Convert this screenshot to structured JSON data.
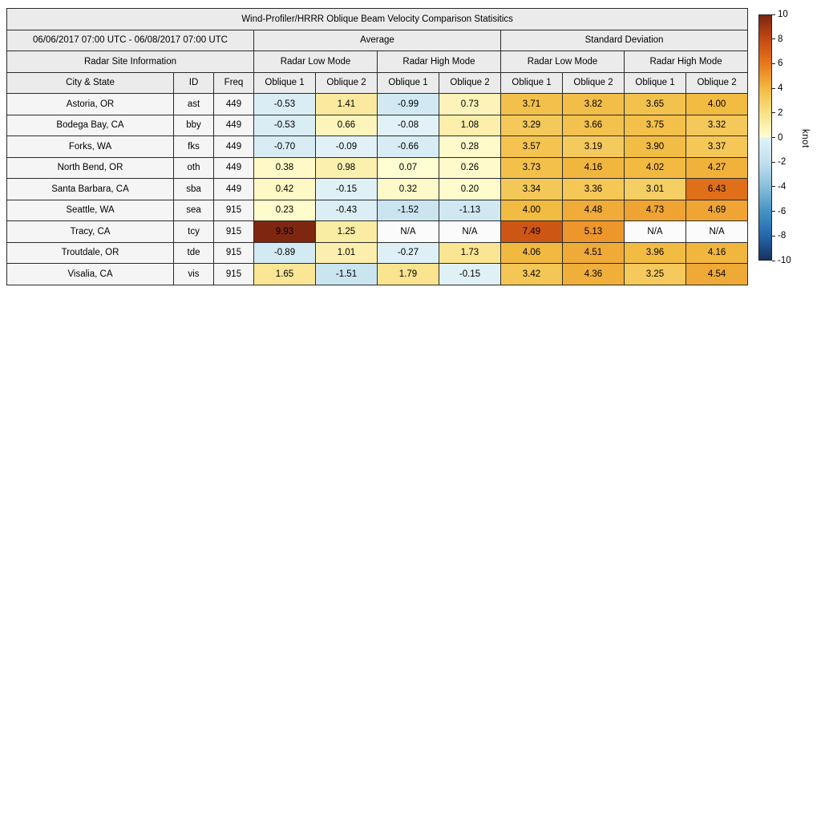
{
  "chart_data": {
    "type": "heatmap",
    "title": "Wind-Profiler/HRRR Oblique Beam Velocity Comparison Statisitics",
    "date_range": "06/06/2017 07:00 UTC - 06/08/2017 07:00 UTC",
    "groups": [
      "Average",
      "Standard Deviation"
    ],
    "site_info_header": "Radar Site Information",
    "mode_headers": [
      "Radar Low Mode",
      "Radar High Mode",
      "Radar Low Mode",
      "Radar High Mode"
    ],
    "row_headers": [
      "City & State",
      "ID",
      "Freq"
    ],
    "value_columns": [
      "Oblique 1",
      "Oblique 2",
      "Oblique 1",
      "Oblique 2",
      "Oblique 1",
      "Oblique 2",
      "Oblique 1",
      "Oblique 2"
    ],
    "na_text": "N/A",
    "rows": [
      {
        "city": "Astoria, OR",
        "id": "ast",
        "freq": "449",
        "values": [
          -0.53,
          1.41,
          -0.99,
          0.73,
          3.71,
          3.82,
          3.65,
          4.0
        ]
      },
      {
        "city": "Bodega Bay, CA",
        "id": "bby",
        "freq": "449",
        "values": [
          -0.53,
          0.66,
          -0.08,
          1.08,
          3.29,
          3.66,
          3.75,
          3.32
        ]
      },
      {
        "city": "Forks, WA",
        "id": "fks",
        "freq": "449",
        "values": [
          -0.7,
          -0.09,
          -0.66,
          0.28,
          3.57,
          3.19,
          3.9,
          3.37
        ]
      },
      {
        "city": "North Bend, OR",
        "id": "oth",
        "freq": "449",
        "values": [
          0.38,
          0.98,
          0.07,
          0.26,
          3.73,
          4.16,
          4.02,
          4.27
        ]
      },
      {
        "city": "Santa Barbara, CA",
        "id": "sba",
        "freq": "449",
        "values": [
          0.42,
          -0.15,
          0.32,
          0.2,
          3.34,
          3.36,
          3.01,
          6.43
        ]
      },
      {
        "city": "Seattle, WA",
        "id": "sea",
        "freq": "915",
        "values": [
          0.23,
          -0.43,
          -1.52,
          -1.13,
          4.0,
          4.48,
          4.73,
          4.69
        ]
      },
      {
        "city": "Tracy, CA",
        "id": "tcy",
        "freq": "915",
        "values": [
          9.93,
          1.25,
          null,
          null,
          7.49,
          5.13,
          null,
          null
        ]
      },
      {
        "city": "Troutdale, OR",
        "id": "tde",
        "freq": "915",
        "values": [
          -0.89,
          1.01,
          -0.27,
          1.73,
          4.06,
          4.51,
          3.96,
          4.16
        ]
      },
      {
        "city": "Visalia, CA",
        "id": "vis",
        "freq": "915",
        "values": [
          1.65,
          -1.51,
          1.79,
          -0.15,
          3.42,
          4.36,
          3.25,
          4.54
        ]
      }
    ],
    "colorbar": {
      "label": "knot",
      "min": -10,
      "max": 10,
      "ticks": [
        10,
        8,
        6,
        4,
        2,
        0,
        -2,
        -4,
        -6,
        -8,
        -10
      ],
      "stops": [
        [
          -10,
          "#17325f"
        ],
        [
          -8,
          "#2368ad"
        ],
        [
          -6,
          "#4494c4"
        ],
        [
          -4,
          "#8abfdc"
        ],
        [
          -2,
          "#c2e0ee"
        ],
        [
          -0.001,
          "#e2f2f7"
        ],
        [
          0.001,
          "#fffed5"
        ],
        [
          2,
          "#f9e187"
        ],
        [
          4,
          "#f2bb41"
        ],
        [
          6,
          "#e8791c"
        ],
        [
          8,
          "#c54a12"
        ],
        [
          10,
          "#7c2511"
        ]
      ]
    },
    "colors": {
      "na_cell": "#fbfbfb",
      "header_fill": "#ebebeb",
      "label_fill": "#f5f5f5",
      "border": "#2a2a2a"
    }
  }
}
